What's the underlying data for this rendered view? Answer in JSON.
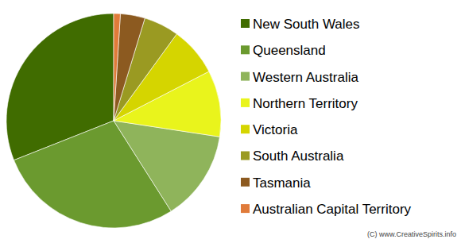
{
  "chart_data": {
    "type": "pie",
    "categories": [
      "New South Wales",
      "Queensland",
      "Western Australia",
      "Northern Territory",
      "Victoria",
      "South Australia",
      "Tasmania",
      "Australian Capital Territory"
    ],
    "values": [
      31,
      28,
      13.6,
      10,
      7.4,
      5.3,
      3.7,
      1.0
    ],
    "colors": [
      "#406c00",
      "#6b9a2f",
      "#8fb45b",
      "#e9f41c",
      "#d5d500",
      "#9a9a22",
      "#8c5a20",
      "#e07b3a"
    ],
    "legend": "right",
    "annotations": [
      "(C) www.CreativeSpirits.info"
    ]
  }
}
